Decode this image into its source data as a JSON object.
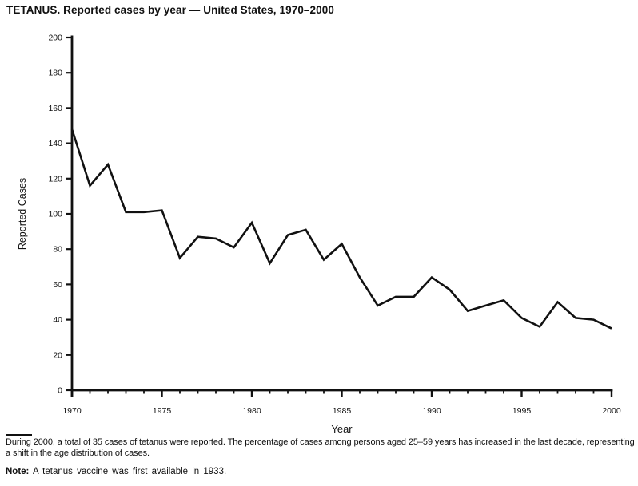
{
  "title": "TETANUS. Reported cases by year — United States, 1970–2000",
  "chart_data": {
    "type": "line",
    "title": "TETANUS. Reported cases by year — United States, 1970–2000",
    "xlabel": "Year",
    "ylabel": "Reported Cases",
    "x": [
      1970,
      1971,
      1972,
      1973,
      1974,
      1975,
      1976,
      1977,
      1978,
      1979,
      1980,
      1981,
      1982,
      1983,
      1984,
      1985,
      1986,
      1987,
      1988,
      1989,
      1990,
      1991,
      1992,
      1993,
      1994,
      1995,
      1996,
      1997,
      1998,
      1999,
      2000
    ],
    "values": [
      148,
      116,
      128,
      101,
      101,
      102,
      75,
      87,
      86,
      81,
      95,
      72,
      88,
      91,
      74,
      83,
      64,
      48,
      53,
      53,
      64,
      57,
      45,
      48,
      51,
      41,
      36,
      50,
      41,
      40,
      35
    ],
    "ylim": [
      0,
      200
    ],
    "y_ticks": [
      0,
      20,
      40,
      60,
      80,
      100,
      120,
      140,
      160,
      180,
      200
    ],
    "x_major_ticks": [
      1970,
      1975,
      1980,
      1985,
      1990,
      1995,
      2000
    ],
    "x_minor_tick_step": 1,
    "grid": false,
    "legend_position": "none",
    "line_color": "#111111",
    "axis_color": "#111111",
    "background": "#ffffff"
  },
  "footer": {
    "caption": "During 2000, a total of 35 cases of tetanus were reported. The percentage of cases among persons aged 25–59 years has increased in the last decade, representing a shift in the age distribution of cases.",
    "note_label": "Note:",
    "note_text": " A tetanus vaccine was first available in 1933."
  }
}
